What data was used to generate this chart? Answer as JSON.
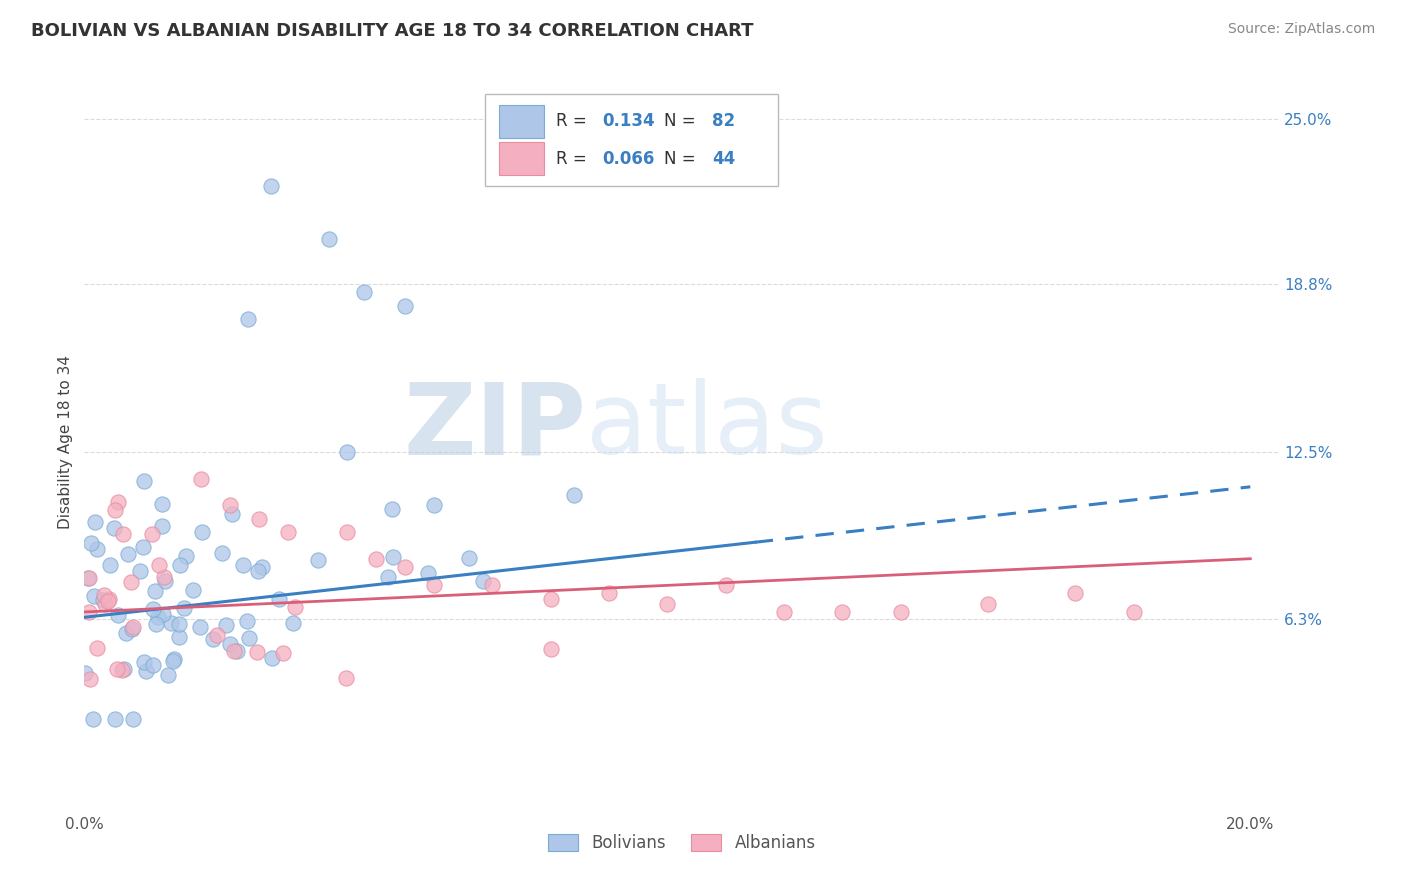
{
  "title": "BOLIVIAN VS ALBANIAN DISABILITY AGE 18 TO 34 CORRELATION CHART",
  "source": "Source: ZipAtlas.com",
  "ylabel": "Disability Age 18 to 34",
  "xlim": [
    0.0,
    0.205
  ],
  "ylim": [
    -0.01,
    0.268
  ],
  "xtick_positions": [
    0.0,
    0.05,
    0.1,
    0.15,
    0.2
  ],
  "xticklabels": [
    "0.0%",
    "",
    "",
    "",
    "20.0%"
  ],
  "ytick_positions": [
    0.0625,
    0.125,
    0.188,
    0.25
  ],
  "ytick_labels": [
    "6.3%",
    "12.5%",
    "18.8%",
    "25.0%"
  ],
  "blue_R": 0.134,
  "blue_N": 82,
  "pink_R": 0.066,
  "pink_N": 44,
  "blue_color": "#aec6e8",
  "pink_color": "#f4afc0",
  "blue_edge_color": "#7badd4",
  "pink_edge_color": "#e88ca0",
  "blue_line_color": "#3a7fc1",
  "pink_line_color": "#d95f78",
  "watermark_color": "#d8e4f0",
  "watermark_text_color": "#c8d8ec",
  "grid_color": "#cccccc",
  "background_color": "#ffffff",
  "blue_trend_start_y": 0.063,
  "blue_trend_end_y": 0.112,
  "pink_trend_start_y": 0.065,
  "pink_trend_end_y": 0.085,
  "trend_split_x": 0.115,
  "trend_dashed_end_y": 0.122,
  "legend_label_blue": "Bolivians",
  "legend_label_pink": "Albanians"
}
